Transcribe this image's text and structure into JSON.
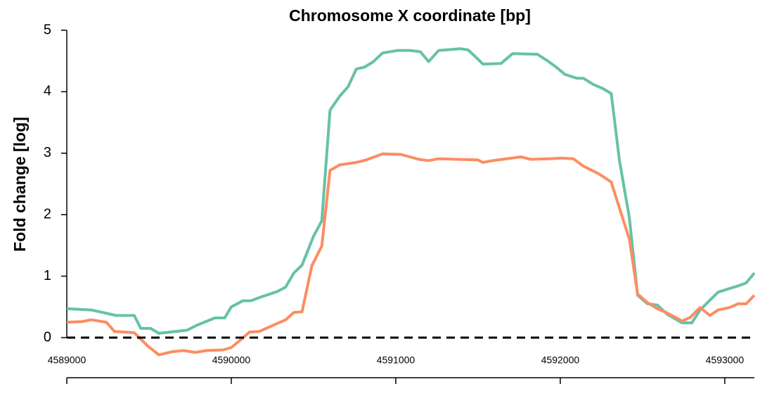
{
  "chart_data": {
    "type": "line",
    "title": "Chromosome X coordinate [bp]",
    "ylabel": "Fold change [log]",
    "xlim": [
      4589000,
      4593180
    ],
    "xticks": [
      4589000,
      4590000,
      4591000,
      4592000,
      4593000
    ],
    "ylim": [
      0,
      5
    ],
    "yticks": [
      0,
      1,
      2,
      3,
      4,
      5
    ],
    "hline": 0,
    "series": [
      {
        "color": "#66c2a5",
        "x": [
          4589000,
          4589150,
          4589300,
          4589410,
          4589450,
          4589510,
          4589560,
          4589730,
          4589790,
          4589900,
          4589960,
          4590000,
          4590070,
          4590120,
          4590180,
          4590280,
          4590330,
          4590380,
          4590430,
          4590500,
          4590550,
          4590600,
          4590660,
          4590710,
          4590760,
          4590810,
          4590860,
          4590920,
          4591010,
          4591090,
          4591150,
          4591200,
          4591260,
          4591350,
          4591390,
          4591440,
          4591480,
          4591530,
          4591640,
          4591710,
          4591860,
          4591930,
          4591980,
          4592030,
          4592100,
          4592140,
          4592200,
          4592260,
          4592310,
          4592360,
          4592420,
          4592470,
          4592530,
          4592590,
          4592650,
          4592740,
          4592800,
          4592850,
          4592910,
          4592960,
          4593030,
          4593080,
          4593130,
          4593180
        ],
        "values": [
          0.47,
          0.45,
          0.36,
          0.36,
          0.15,
          0.15,
          0.07,
          0.12,
          0.2,
          0.32,
          0.32,
          0.5,
          0.6,
          0.6,
          0.66,
          0.75,
          0.82,
          1.05,
          1.18,
          1.65,
          1.9,
          3.7,
          3.93,
          4.08,
          4.37,
          4.4,
          4.48,
          4.63,
          4.67,
          4.67,
          4.65,
          4.49,
          4.67,
          4.69,
          4.7,
          4.68,
          4.58,
          4.45,
          4.46,
          4.62,
          4.61,
          4.49,
          4.39,
          4.28,
          4.22,
          4.22,
          4.12,
          4.05,
          3.97,
          2.88,
          1.95,
          0.69,
          0.55,
          0.53,
          0.38,
          0.24,
          0.24,
          0.45,
          0.61,
          0.74,
          0.8,
          0.84,
          0.89,
          1.05
        ]
      },
      {
        "color": "#fc8d62",
        "x": [
          4589000,
          4589090,
          4589150,
          4589240,
          4589290,
          4589410,
          4589490,
          4589560,
          4589640,
          4589710,
          4589780,
          4589850,
          4589950,
          4590000,
          4590060,
          4590110,
          4590170,
          4590270,
          4590330,
          4590380,
          4590430,
          4590490,
          4590550,
          4590600,
          4590660,
          4590760,
          4590820,
          4590920,
          4591030,
          4591140,
          4591200,
          4591260,
          4591370,
          4591500,
          4591530,
          4591590,
          4591650,
          4591760,
          4591820,
          4591930,
          4592010,
          4592080,
          4592140,
          4592230,
          4592260,
          4592310,
          4592420,
          4592470,
          4592530,
          4592590,
          4592650,
          4592740,
          4592790,
          4592850,
          4592910,
          4592960,
          4593030,
          4593080,
          4593130,
          4593180
        ],
        "values": [
          0.25,
          0.26,
          0.29,
          0.25,
          0.1,
          0.08,
          -0.13,
          -0.28,
          -0.23,
          -0.21,
          -0.24,
          -0.21,
          -0.2,
          -0.16,
          -0.03,
          0.09,
          0.1,
          0.22,
          0.29,
          0.41,
          0.42,
          1.17,
          1.49,
          2.72,
          2.81,
          2.85,
          2.89,
          2.99,
          2.98,
          2.9,
          2.88,
          2.91,
          2.9,
          2.89,
          2.85,
          2.88,
          2.9,
          2.94,
          2.9,
          2.91,
          2.92,
          2.91,
          2.79,
          2.67,
          2.62,
          2.53,
          1.6,
          0.71,
          0.57,
          0.47,
          0.4,
          0.27,
          0.33,
          0.49,
          0.36,
          0.45,
          0.49,
          0.55,
          0.55,
          0.69
        ]
      }
    ]
  }
}
